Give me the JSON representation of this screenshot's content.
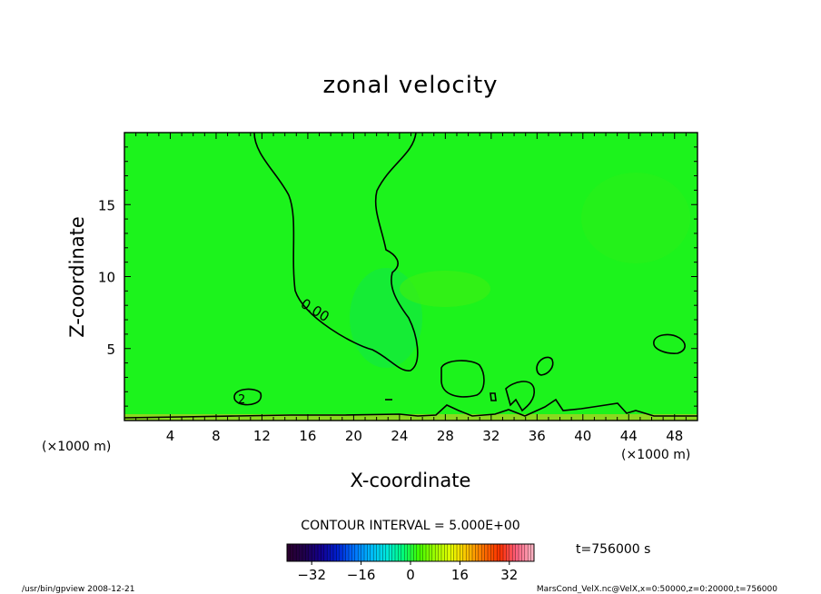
{
  "chart_data": {
    "type": "contour",
    "title": "zonal velocity",
    "xlabel": "X-coordinate",
    "ylabel": "Z-coordinate",
    "x_unit": "(×1000 m)",
    "xlim": [
      0,
      50
    ],
    "ylim": [
      0,
      20
    ],
    "x_ticks": [
      4,
      8,
      12,
      16,
      20,
      24,
      28,
      32,
      36,
      40,
      44,
      48
    ],
    "y_ticks": [
      5,
      10,
      15
    ],
    "contour_interval": "CONTOUR INTERVAL = 5.000E+00",
    "contour_label": "0.00",
    "small_contour_label": "2",
    "colorbar": {
      "ticks": [
        -32,
        -16,
        0,
        16,
        32
      ],
      "range": [
        -40,
        40
      ],
      "colors": [
        "#2a0030",
        "#1f004e",
        "#130090",
        "#0020d0",
        "#0070ff",
        "#00b8ff",
        "#00e8e0",
        "#00ff80",
        "#40ff00",
        "#a0ff00",
        "#e8ff00",
        "#ffc000",
        "#ff7000",
        "#ff3000",
        "#ff6080",
        "#ffb0c0"
      ],
      "field_color": "#1cf31c"
    },
    "time_label": "t=756000 s"
  },
  "footer": {
    "left": "/usr/bin/gpview  2008-12-21",
    "right": "MarsCond_VelX.nc@VelX,x=0:50000,z=0:20000,t=756000"
  }
}
